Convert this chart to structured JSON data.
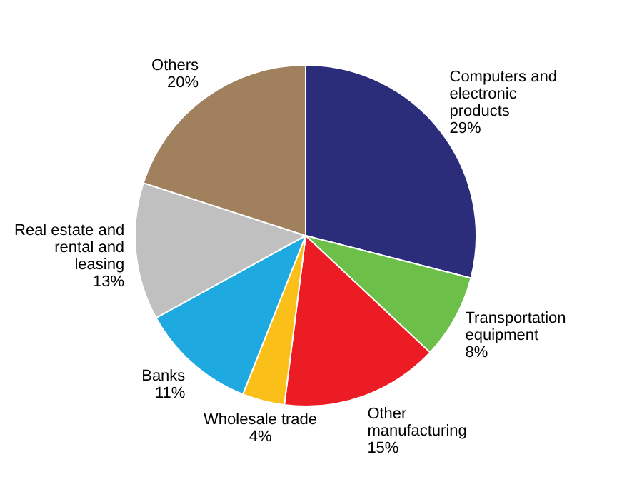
{
  "chart_data": {
    "type": "pie",
    "categories": [
      "Computers and electronic products",
      "Transportation equipment",
      "Other manufacturing",
      "Wholesale trade",
      "Banks",
      "Real estate and rental and leasing",
      "Others"
    ],
    "values": [
      29,
      8,
      15,
      4,
      11,
      13,
      20
    ],
    "value_labels": [
      "29%",
      "8%",
      "15%",
      "4%",
      "11%",
      "13%",
      "20%"
    ],
    "colors": [
      "#2b2d7a",
      "#6cc04a",
      "#ec1c24",
      "#fbbf1a",
      "#1fa9e1",
      "#c0c0c0",
      "#a0805d"
    ],
    "legend": false
  }
}
